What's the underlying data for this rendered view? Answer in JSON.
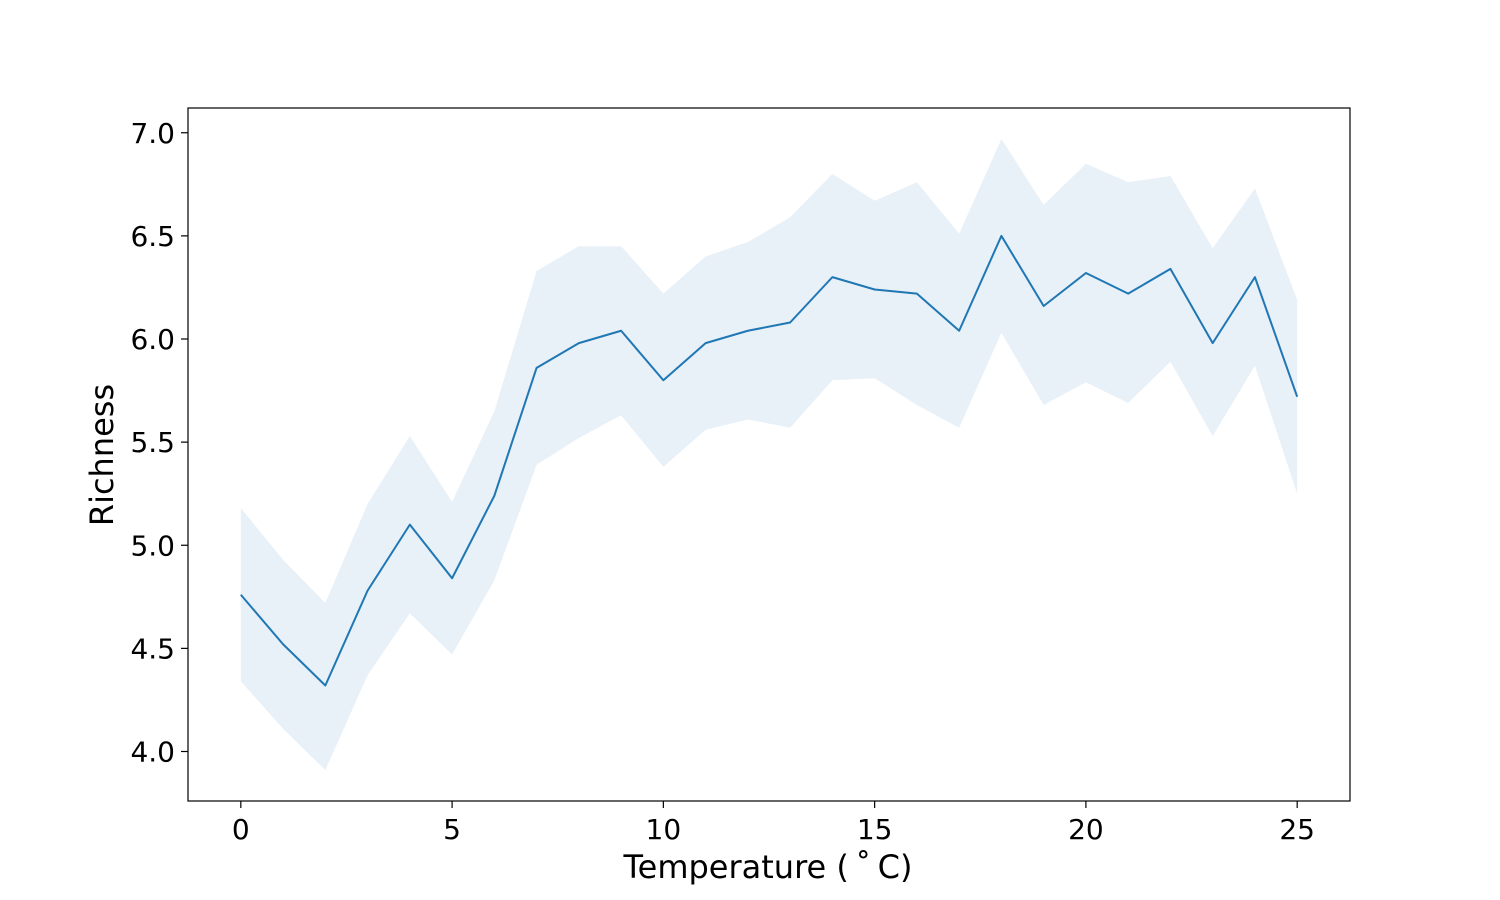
{
  "chart_data": {
    "type": "line",
    "title": "",
    "xlabel": "Temperature ($^\\circ$C)",
    "xlabel_display": "Temperature ( ˚ C)",
    "ylabel": "Richness",
    "xlim": [
      -1.25,
      26.25
    ],
    "ylim": [
      3.76,
      7.12
    ],
    "xticks": [
      0,
      5,
      10,
      15,
      20,
      25
    ],
    "xtick_labels": [
      "0",
      "5",
      "10",
      "15",
      "20",
      "25"
    ],
    "yticks": [
      4.0,
      4.5,
      5.0,
      5.5,
      6.0,
      6.5,
      7.0
    ],
    "ytick_labels": [
      "4.0",
      "4.5",
      "5.0",
      "5.5",
      "6.0",
      "6.5",
      "7.0"
    ],
    "grid": false,
    "legend": "none",
    "x": [
      0,
      1,
      2,
      3,
      4,
      5,
      6,
      7,
      8,
      9,
      10,
      11,
      12,
      13,
      14,
      15,
      16,
      17,
      18,
      19,
      20,
      21,
      22,
      23,
      24,
      25
    ],
    "series": [
      {
        "values": [
          4.76,
          4.52,
          4.32,
          4.78,
          5.1,
          4.84,
          5.24,
          5.86,
          5.98,
          6.04,
          5.8,
          5.98,
          6.04,
          6.08,
          6.3,
          6.24,
          6.22,
          6.04,
          6.5,
          6.16,
          6.32,
          6.22,
          6.34,
          5.98,
          6.3,
          5.72
        ],
        "lower": [
          4.34,
          4.11,
          3.91,
          4.37,
          4.67,
          4.47,
          4.83,
          5.39,
          5.52,
          5.63,
          5.38,
          5.56,
          5.61,
          5.57,
          5.8,
          5.81,
          5.68,
          5.57,
          6.03,
          5.68,
          5.79,
          5.69,
          5.89,
          5.53,
          5.87,
          5.25
        ],
        "upper": [
          5.18,
          4.93,
          4.72,
          5.2,
          5.53,
          5.21,
          5.65,
          6.33,
          6.45,
          6.45,
          6.22,
          6.4,
          6.47,
          6.59,
          6.8,
          6.67,
          6.76,
          6.51,
          6.97,
          6.65,
          6.85,
          6.76,
          6.79,
          6.44,
          6.73,
          6.19
        ]
      }
    ],
    "colors": {
      "line": "#1f77b4",
      "band": "#e8f0f8",
      "axes": "#000000"
    }
  }
}
